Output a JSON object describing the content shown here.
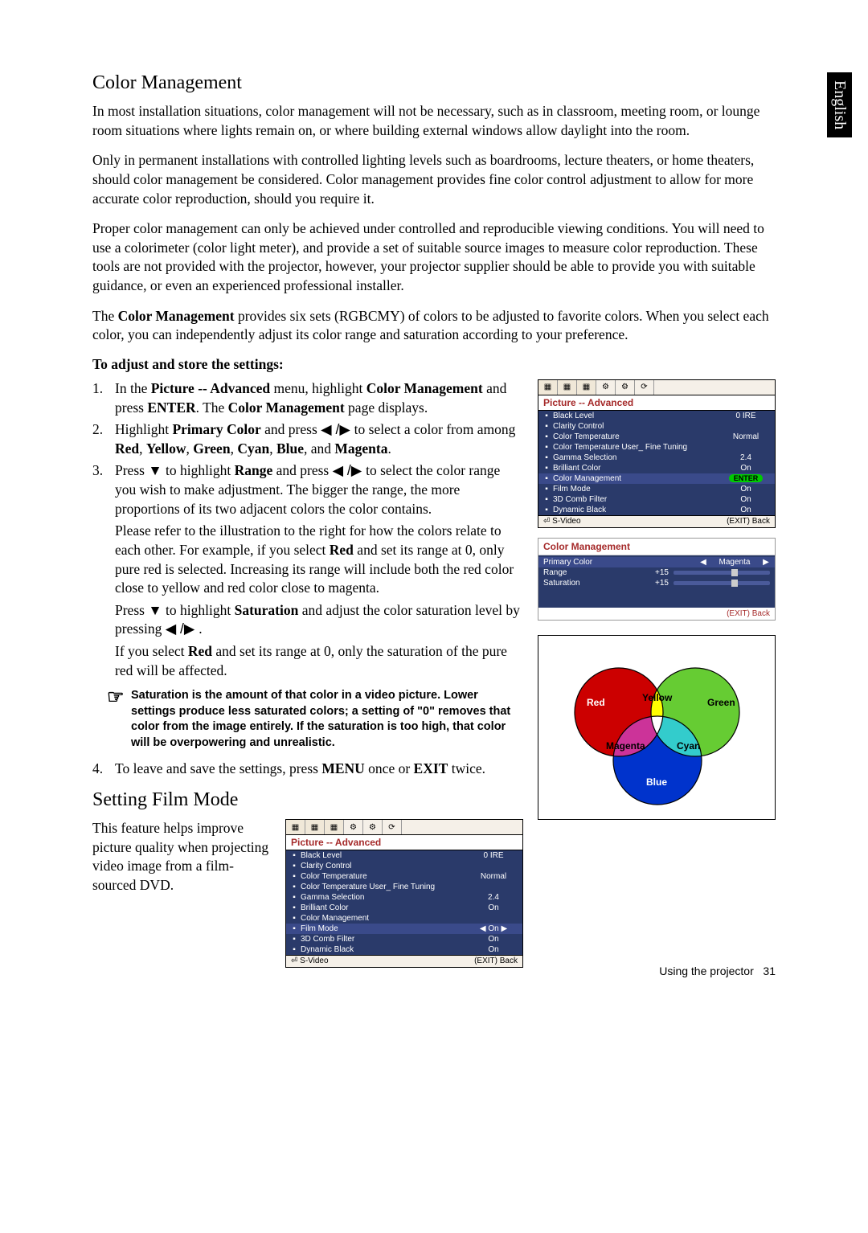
{
  "side_tab": "English",
  "h1": "Color Management",
  "p1": "In most installation situations, color management will not be necessary, such as in classroom, meeting room, or lounge room situations where lights remain on, or where building external windows allow daylight into the room.",
  "p2": "Only in permanent installations with controlled lighting levels such as boardrooms, lecture theaters, or home theaters, should color management be considered. Color management provides fine color control adjustment to allow for more accurate color reproduction, should you require it.",
  "p3": "Proper color management can only be achieved under controlled and reproducible viewing conditions. You will need to use a colorimeter (color light meter), and provide a set of suitable source images to measure color reproduction. These tools are not provided with the projector, however, your projector supplier should be able to provide you with suitable guidance, or even an experienced professional installer.",
  "p4_pre": "The ",
  "p4_b": "Color Management",
  "p4_post": " provides six sets (RGBCMY) of colors to be adjusted to favorite colors. When you select each color, you can independently adjust its color range and saturation according to your preference.",
  "adjust_heading": "To adjust and store the settings:",
  "li1_a": "In the ",
  "li1_b1": "Picture -- Advanced",
  "li1_c": " menu, highlight ",
  "li1_b2": "Color Management",
  "li1_d": " and press ",
  "li1_b3": "ENTER",
  "li1_e": ". The ",
  "li1_b4": "Color Management",
  "li1_f": " page displays.",
  "li2_a": "Highlight ",
  "li2_b1": "Primary Color",
  "li2_c": " and press ",
  "li2_arrows": "◀ /▶ ",
  "li2_d": " to select a color from among ",
  "li2_b2": "Red",
  "li2_b3": "Yellow",
  "li2_b4": "Green",
  "li2_b5": "Cyan",
  "li2_b6": "Blue",
  "li2_b7": "Magenta",
  "li3_a": "Press ▼ to highlight ",
  "li3_b1": "Range",
  "li3_c": " and press  ",
  "li3_arrows": "◀ /▶ ",
  "li3_d": " to select the color range you wish to make adjustment. The bigger the range, the more proportions of its two adjacent colors the color contains.",
  "li3_p1_a": "Please refer to the illustration to the right for how the colors relate to each other. For example, if you select ",
  "li3_p1_b": "Red",
  "li3_p1_c": " and set its range at 0, only pure red is selected. Increasing its range will include both the red color close to yellow and red color close to magenta.",
  "li3_p2_a": "Press ▼ to highlight ",
  "li3_p2_b": "Saturation",
  "li3_p2_c": " and adjust the color saturation level by pressing ",
  "li3_p2_arrows": "◀ /▶ ",
  "li3_p2_d": ".",
  "li3_p3_a": "If you select ",
  "li3_p3_b": "Red",
  "li3_p3_c": " and set its range at 0, only the saturation of the pure red will be affected.",
  "note_text": "Saturation is the amount of that color in a video picture. Lower settings produce less saturated colors; a setting of \"0\" removes that color from the image entirely. If the saturation is too high, that color will be overpowering and unrealistic.",
  "li4_a": "To leave and save the settings, press ",
  "li4_b1": "MENU",
  "li4_c": " once or ",
  "li4_b2": "EXIT",
  "li4_d": " twice.",
  "h2": "Setting Film Mode",
  "p5": "This feature helps improve picture quality when projecting video image from a film-sourced DVD.",
  "osd1": {
    "title": "Picture -- Advanced",
    "rows": [
      {
        "label": "Black Level",
        "value": "0 IRE"
      },
      {
        "label": "Clarity Control",
        "value": ""
      },
      {
        "label": "Color Temperature",
        "value": "Normal"
      },
      {
        "label": "Color Temperature User_ Fine Tuning",
        "value": ""
      },
      {
        "label": "Gamma Selection",
        "value": "2.4"
      },
      {
        "label": "Brilliant Color",
        "value": "On"
      },
      {
        "label": "Color Management",
        "value": "ENTER",
        "hl": true,
        "enter": true
      },
      {
        "label": "Film Mode",
        "value": "On"
      },
      {
        "label": "3D Comb Filter",
        "value": "On"
      },
      {
        "label": "Dynamic Black",
        "value": "On"
      }
    ],
    "footer_l": "S-Video",
    "footer_r": "(EXIT) Back"
  },
  "osd2": {
    "title": "Picture -- Advanced",
    "rows": [
      {
        "label": "Black Level",
        "value": "0 IRE"
      },
      {
        "label": "Clarity Control",
        "value": ""
      },
      {
        "label": "Color Temperature",
        "value": "Normal"
      },
      {
        "label": "Color Temperature User_ Fine Tuning",
        "value": ""
      },
      {
        "label": "Gamma Selection",
        "value": "2.4"
      },
      {
        "label": "Brilliant Color",
        "value": "On"
      },
      {
        "label": "Color Management",
        "value": ""
      },
      {
        "label": "Film Mode",
        "value": "On",
        "hl": true,
        "pill": true
      },
      {
        "label": "3D Comb Filter",
        "value": "On"
      },
      {
        "label": "Dynamic Black",
        "value": "On"
      }
    ],
    "footer_l": "S-Video",
    "footer_r": "(EXIT) Back"
  },
  "cm_panel": {
    "title": "Color Management",
    "primary_label": "Primary Color",
    "primary_value": "Magenta",
    "range_label": "Range",
    "range_value": "+15",
    "sat_label": "Saturation",
    "sat_value": "+15",
    "footer": "(EXIT) Back"
  },
  "venn": {
    "red": "Red",
    "yellow": "Yellow",
    "green": "Green",
    "magenta": "Magenta",
    "cyan": "Cyan",
    "blue": "Blue",
    "colors": {
      "red": "#cc0000",
      "yellow": "#ffff00",
      "green": "#66cc33",
      "magenta": "#cc3399",
      "cyan": "#33cccc",
      "blue": "#0033cc",
      "white": "#ffffff"
    }
  },
  "footer": {
    "label": "Using the projector",
    "page": "31"
  }
}
